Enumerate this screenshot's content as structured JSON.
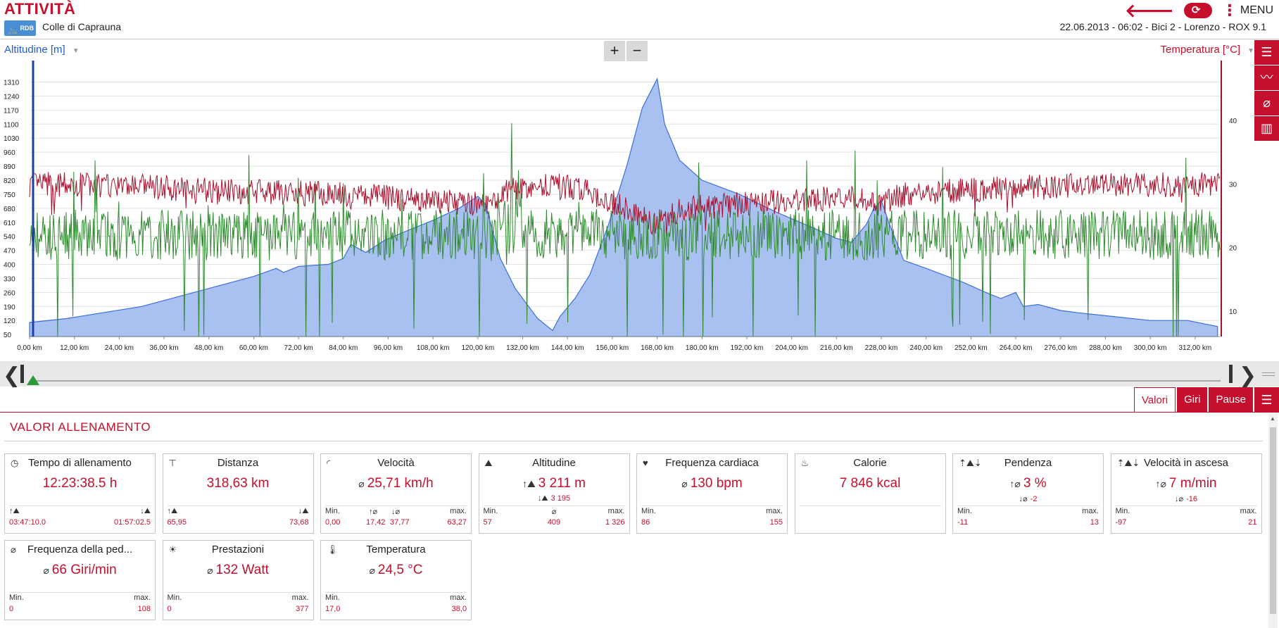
{
  "header": {
    "title": "ATTIVITÀ",
    "logo_text": "RDB",
    "tour_name": "Colle di Caprauna",
    "info": "22.06.2013  -  06:02  -  Bici 2  -  Lorenzo  -  ROX 9.1",
    "menu_label": "MENU"
  },
  "chart": {
    "left_axis_label": "Altitudine [m]",
    "right_axis_label": "Temperatura [°C]",
    "zoom_in": "+",
    "zoom_out": "−"
  },
  "chart_data": {
    "type": "area",
    "x_label": "",
    "x_ticks": [
      "0,00 km",
      "12,00 km",
      "24,00 km",
      "36,00 km",
      "48,00 km",
      "60,00 km",
      "72,00 km",
      "84,00 km",
      "96,00 km",
      "108,00 km",
      "120,00 km",
      "132,00 km",
      "144,00 km",
      "156,00 km",
      "168,00 km",
      "180,00 km",
      "192,00 km",
      "204,00 km",
      "216,00 km",
      "228,00 km",
      "240,00 km",
      "252,00 km",
      "264,00 km",
      "276,00 km",
      "288,00 km",
      "300,00 km",
      "312,00 km"
    ],
    "left_ticks": [
      50,
      120,
      190,
      260,
      330,
      400,
      470,
      540,
      610,
      680,
      750,
      820,
      890,
      960,
      1030,
      1100,
      1170,
      1240,
      1310
    ],
    "right_ticks": [
      10,
      20,
      30,
      40
    ],
    "xlim": [
      0,
      318.63
    ],
    "ylim_left": [
      40,
      1340
    ],
    "ylim_right": [
      6,
      47
    ],
    "altitude": {
      "x": [
        0,
        10,
        20,
        30,
        40,
        50,
        60,
        66,
        68,
        72,
        80,
        84,
        86,
        90,
        95,
        100,
        108,
        115,
        120,
        122,
        126,
        130,
        136,
        140,
        142,
        146,
        150,
        155,
        160,
        164,
        168,
        170,
        174,
        180,
        190,
        200,
        210,
        216,
        220,
        224,
        226,
        228,
        230,
        234,
        240,
        250,
        256,
        260,
        264,
        266,
        270,
        276,
        280,
        290,
        300,
        310,
        318
      ],
      "y": [
        110,
        130,
        160,
        190,
        240,
        290,
        340,
        380,
        360,
        390,
        400,
        430,
        500,
        460,
        520,
        560,
        620,
        680,
        740,
        700,
        430,
        280,
        130,
        70,
        140,
        230,
        350,
        600,
        900,
        1180,
        1326,
        1100,
        920,
        820,
        750,
        660,
        580,
        530,
        510,
        600,
        680,
        720,
        610,
        420,
        380,
        310,
        260,
        230,
        260,
        190,
        200,
        170,
        160,
        140,
        120,
        120,
        90
      ]
    },
    "temperature_range": [
      17.0,
      38.0
    ],
    "temperature_mean": 24.5,
    "cadence_mean": 66,
    "colors": {
      "altitude_fill": "#a9c1f0",
      "altitude_line": "#3b6fd8",
      "temperature": "#a8102c",
      "cadence": "#2f8a2f"
    }
  },
  "tabs": {
    "values": "Valori",
    "laps": "Giri",
    "pauses": "Pause"
  },
  "section_title": "VALORI ALLENAMENTO",
  "cards": [
    {
      "title": "Tempo di allenamento",
      "icon": "clock-icon",
      "main": "12:23:38.5 h",
      "main_sym": "",
      "sub": "",
      "sub_sym": "",
      "l1": "",
      "l2": "",
      "l3": "",
      "v1": "03:47:10.0",
      "v2": "",
      "v3": "01:57:02.5",
      "v1_sym": "↑⛰",
      "v3_sym": "↓⛰"
    },
    {
      "title": "Distanza",
      "icon": "signpost-icon",
      "main": "318,63 km",
      "main_sym": "",
      "sub": "",
      "sub_sym": "",
      "l1": "",
      "l2": "",
      "l3": "",
      "v1": "65,95",
      "v2": "",
      "v3": "73,68",
      "v1_sym": "↑⛰",
      "v3_sym": "↓⛰"
    },
    {
      "title": "Velocità",
      "icon": "speedometer-icon",
      "main": "25,71 km/h",
      "main_sym": "⌀",
      "sub": "",
      "sub_sym": "",
      "l1": "Min.",
      "l2": "",
      "l3": "max.",
      "v1": "0,00",
      "v2": "17,42",
      "v2b": "37,77",
      "v3": "63,27",
      "v2_sym": "↑⌀",
      "v2b_sym": "↓⌀"
    },
    {
      "title": "Altitudine",
      "icon": "mountain-icon",
      "main": "3 211 m",
      "main_sym": "↑⛰",
      "sub": "3 195",
      "sub_sym": "↓⛰",
      "l1": "Min.",
      "l2": "⌀",
      "l3": "max.",
      "v1": "57",
      "v2": "409",
      "v3": "1 326"
    },
    {
      "title": "Frequenza cardiaca",
      "icon": "heart-icon",
      "main": "130 bpm",
      "main_sym": "⌀",
      "sub": "",
      "sub_sym": "",
      "l1": "Min.",
      "l2": "",
      "l3": "max.",
      "v1": "86",
      "v2": "",
      "v3": "155"
    },
    {
      "title": "Calorie",
      "icon": "flame-icon",
      "main": "7 846 kcal",
      "main_sym": "",
      "sub": "",
      "sub_sym": "",
      "l1": "",
      "l2": "",
      "l3": "",
      "v1": "",
      "v2": "",
      "v3": ""
    },
    {
      "title": "Pendenza",
      "icon": "slope-icon",
      "main": "3 %",
      "main_sym": "↑⌀",
      "sub": "-2",
      "sub_sym": "↓⌀",
      "l1": "Min.",
      "l2": "",
      "l3": "max.",
      "v1": "-11",
      "v2": "",
      "v3": "13"
    },
    {
      "title": "Velocità in ascesa",
      "icon": "climb-icon",
      "main": "7 m/min",
      "main_sym": "↑⌀",
      "sub": "-16",
      "sub_sym": "↓⌀",
      "l1": "Min.",
      "l2": "",
      "l3": "max.",
      "v1": "-97",
      "v2": "",
      "v3": "21"
    },
    {
      "title": "Frequenza della ped...",
      "icon": "cadence-icon",
      "main": "66 Giri/min",
      "main_sym": "⌀",
      "sub": "",
      "sub_sym": "",
      "l1": "Min.",
      "l2": "",
      "l3": "max.",
      "v1": "0",
      "v2": "",
      "v3": "108"
    },
    {
      "title": "Prestazioni",
      "icon": "power-icon",
      "main": "132 Watt",
      "main_sym": "⌀",
      "sub": "",
      "sub_sym": "",
      "l1": "Min.",
      "l2": "",
      "l3": "max.",
      "v1": "0",
      "v2": "",
      "v3": "377"
    },
    {
      "title": "Temperatura",
      "icon": "thermometer-icon",
      "main": "24,5 °C",
      "main_sym": "⌀",
      "sub": "",
      "sub_sym": "",
      "l1": "Min.",
      "l2": "",
      "l3": "max.",
      "v1": "17,0",
      "v2": "",
      "v3": "38,0"
    }
  ]
}
